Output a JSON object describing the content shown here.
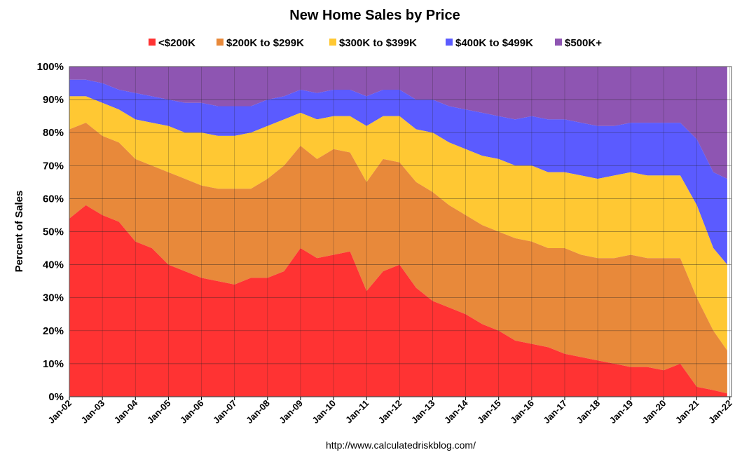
{
  "chart_data": {
    "type": "area",
    "stacked": true,
    "percent_stacked": true,
    "title": "New Home Sales by Price",
    "ylabel": "Percent of Sales",
    "xlabel": "",
    "ylim": [
      0,
      100
    ],
    "y_ticks": [
      "0%",
      "10%",
      "20%",
      "30%",
      "40%",
      "50%",
      "60%",
      "70%",
      "80%",
      "90%",
      "100%"
    ],
    "x_ticks": [
      "Jan-02",
      "Jan-03",
      "Jan-04",
      "Jan-05",
      "Jan-06",
      "Jan-07",
      "Jan-08",
      "Jan-09",
      "Jan-10",
      "Jan-11",
      "Jan-12",
      "Jan-13",
      "Jan-14",
      "Jan-15",
      "Jan-16",
      "Jan-17",
      "Jan-18",
      "Jan-19",
      "Jan-20",
      "Jan-21",
      "Jan-22"
    ],
    "grid": true,
    "legend_position": "top",
    "source": "http://www.calculatedriskblog.com/",
    "x_years": [
      2002.0,
      2002.5,
      2003.0,
      2003.5,
      2004.0,
      2004.5,
      2005.0,
      2005.5,
      2006.0,
      2006.5,
      2007.0,
      2007.5,
      2008.0,
      2008.5,
      2009.0,
      2009.5,
      2010.0,
      2010.5,
      2011.0,
      2011.5,
      2012.0,
      2012.5,
      2013.0,
      2013.5,
      2014.0,
      2014.5,
      2015.0,
      2015.5,
      2016.0,
      2016.5,
      2017.0,
      2017.5,
      2018.0,
      2018.5,
      2019.0,
      2019.5,
      2020.0,
      2020.5,
      2021.0,
      2021.5,
      2021.92
    ],
    "series": [
      {
        "name": "<$200K",
        "color": "#FF3333",
        "cumulative": [
          54,
          58,
          55,
          53,
          47,
          45,
          40,
          38,
          36,
          35,
          34,
          36,
          36,
          38,
          45,
          42,
          43,
          44,
          32,
          38,
          40,
          33,
          29,
          27,
          25,
          22,
          20,
          17,
          16,
          15,
          13,
          12,
          11,
          10,
          9,
          9,
          8,
          10,
          3,
          2,
          1
        ]
      },
      {
        "name": "$200K to $299K",
        "color": "#E8893A",
        "cumulative": [
          81,
          83,
          79,
          77,
          72,
          70,
          68,
          66,
          64,
          63,
          63,
          63,
          66,
          70,
          76,
          72,
          75,
          74,
          65,
          72,
          71,
          65,
          62,
          58,
          55,
          52,
          50,
          48,
          47,
          45,
          45,
          43,
          42,
          42,
          43,
          42,
          42,
          42,
          30,
          20,
          14
        ]
      },
      {
        "name": "$300K to $399K",
        "color": "#FFC833",
        "cumulative": [
          91,
          91,
          89,
          87,
          84,
          83,
          82,
          80,
          80,
          79,
          79,
          80,
          82,
          84,
          86,
          84,
          85,
          85,
          82,
          85,
          85,
          81,
          80,
          77,
          75,
          73,
          72,
          70,
          70,
          68,
          68,
          67,
          66,
          67,
          68,
          67,
          67,
          67,
          58,
          45,
          40
        ]
      },
      {
        "name": "$400K to $499K",
        "color": "#5B5BFF",
        "cumulative": [
          96,
          96,
          95,
          93,
          92,
          91,
          90,
          89,
          89,
          88,
          88,
          88,
          90,
          91,
          93,
          92,
          93,
          93,
          91,
          93,
          93,
          90,
          90,
          88,
          87,
          86,
          85,
          84,
          85,
          84,
          84,
          83,
          82,
          82,
          83,
          83,
          83,
          83,
          78,
          68,
          66
        ]
      },
      {
        "name": "$500K+",
        "color": "#8E55B2",
        "cumulative": [
          100,
          100,
          100,
          100,
          100,
          100,
          100,
          100,
          100,
          100,
          100,
          100,
          100,
          100,
          100,
          100,
          100,
          100,
          100,
          100,
          100,
          100,
          100,
          100,
          100,
          100,
          100,
          100,
          100,
          100,
          100,
          100,
          100,
          100,
          100,
          100,
          100,
          100,
          100,
          100,
          100
        ]
      }
    ]
  }
}
